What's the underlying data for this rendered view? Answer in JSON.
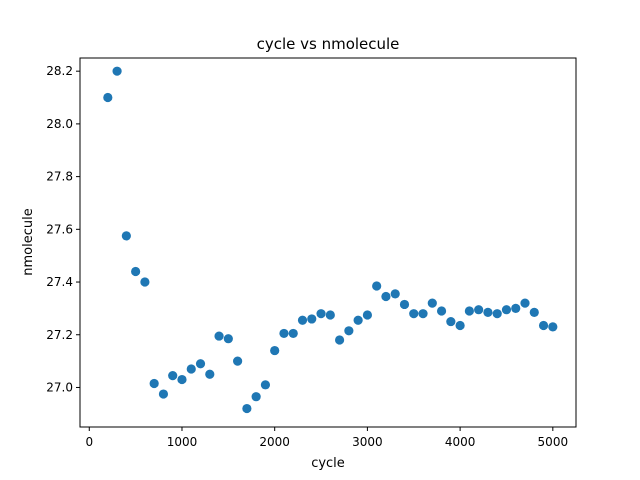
{
  "chart_data": {
    "type": "scatter",
    "title": "cycle vs nmolecule",
    "xlabel": "cycle",
    "ylabel": "nmolecule",
    "xlim": [
      -100,
      5250
    ],
    "ylim": [
      26.85,
      28.25
    ],
    "xticks": [
      0,
      1000,
      2000,
      3000,
      4000,
      5000
    ],
    "yticks": [
      27.0,
      27.2,
      27.4,
      27.6,
      27.8,
      28.0,
      28.2
    ],
    "xtick_labels": [
      "0",
      "1000",
      "2000",
      "3000",
      "4000",
      "5000"
    ],
    "ytick_labels": [
      "27.0",
      "27.2",
      "27.4",
      "27.6",
      "27.8",
      "28.0",
      "28.2"
    ],
    "grid": false,
    "marker_color": "#1f77b4",
    "x": [
      200,
      300,
      400,
      500,
      600,
      700,
      800,
      900,
      1000,
      1100,
      1200,
      1300,
      1400,
      1500,
      1600,
      1700,
      1800,
      1900,
      2000,
      2100,
      2200,
      2300,
      2400,
      2500,
      2600,
      2700,
      2800,
      2900,
      3000,
      3100,
      3200,
      3300,
      3400,
      3500,
      3600,
      3700,
      3800,
      3900,
      4000,
      4100,
      4200,
      4300,
      4400,
      4500,
      4600,
      4700,
      4800,
      4900,
      5000
    ],
    "y": [
      28.1,
      28.2,
      27.575,
      27.44,
      27.4,
      27.015,
      26.975,
      27.045,
      27.03,
      27.07,
      27.09,
      27.05,
      27.195,
      27.185,
      27.1,
      26.92,
      26.965,
      27.01,
      27.14,
      27.205,
      27.205,
      27.255,
      27.26,
      27.28,
      27.275,
      27.18,
      27.215,
      27.255,
      27.275,
      27.385,
      27.345,
      27.355,
      27.315,
      27.28,
      27.28,
      27.32,
      27.29,
      27.25,
      27.235,
      27.29,
      27.295,
      27.285,
      27.28,
      27.295,
      27.3,
      27.32,
      27.285,
      27.235,
      27.23
    ]
  }
}
